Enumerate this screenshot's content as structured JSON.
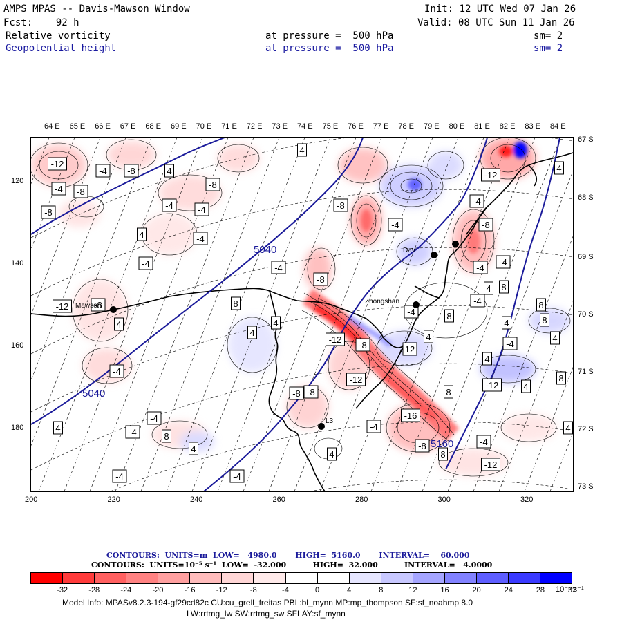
{
  "header": {
    "title": "AMPS MPAS -- Davis-Mawson Window",
    "fcst": "Fcst:    92 h",
    "init": "Init: 12 UTC Wed 07 Jan 26",
    "valid": "Valid: 08 UTC Sun 11 Jan 26",
    "field1": {
      "name": "Relative vorticity",
      "level": "at pressure =  500 hPa",
      "sm": "sm= 2"
    },
    "field2": {
      "name": "Geopotential height",
      "level": "at pressure =  500 hPa",
      "sm": "sm= 2"
    }
  },
  "axes": {
    "top_lon_labels": [
      "64 E",
      "65 E",
      "66 E",
      "67 E",
      "68 E",
      "69 E",
      "70 E",
      "71 E",
      "72 E",
      "73 E",
      "74 E",
      "75 E",
      "76 E",
      "77 E",
      "78 E",
      "79 E",
      "80 E",
      "81 E",
      "82 E",
      "83 E",
      "84 E"
    ],
    "right_lat_labels": [
      "67 S",
      "68 S",
      "69 S",
      "70 S",
      "71 S",
      "72 S",
      "73 S"
    ],
    "left_labels": [
      "120",
      "140",
      "160",
      "180"
    ],
    "bottom_labels": [
      "200",
      "220",
      "240",
      "260",
      "280",
      "300",
      "320"
    ]
  },
  "stations": [
    {
      "name": "Mawson",
      "label": "Mawson"
    },
    {
      "name": "Zhongshan",
      "label": "Zhongshan"
    },
    {
      "name": "Davis",
      "label": "Dav"
    },
    {
      "name": "Station-L3",
      "label": "L3"
    },
    {
      "name": "Station-east",
      "label": ""
    }
  ],
  "height_contour_labels": [
    "5040",
    "5040",
    "5160"
  ],
  "vorticity_box_labels": [
    "-12",
    "-4",
    "-8",
    "4",
    "-8",
    "-4",
    "-8",
    "-4",
    "-4",
    "-8",
    "-4",
    "4",
    "-4",
    "4",
    "-8",
    "-12",
    "4",
    "8",
    "-4",
    "-8",
    "-12",
    "4",
    "-4",
    "-8",
    "-4",
    "4",
    "-8",
    "4",
    "8",
    "-4",
    "-8",
    "-12",
    "-4",
    "-4",
    "-12",
    "-4",
    "-4",
    "8",
    "4",
    "-8",
    "4",
    "-16",
    "-8",
    "4",
    "-12",
    "4",
    "-4",
    "4",
    "-4",
    "-4",
    "4",
    "12",
    "8",
    "4",
    "8",
    "-8",
    "-4",
    "4",
    "-4",
    "8",
    "-4",
    "-4",
    "-12",
    "8",
    "4",
    "-4",
    "8",
    "4",
    "8"
  ],
  "footer": {
    "contours_1": "CONTOURS:  UNITS=m  LOW=   4980.0       HIGH=  5160.0       INTERVAL=    60.000",
    "contours_2": "CONTOURS:  UNITS=10⁻⁵ s⁻¹  LOW=  -32.000          HIGH=  32.000          INTERVAL=   4.0000",
    "model_info": "Model Info: MPASv8.2.3-194-gf29cd82c CU:cu_grell_freitas PBL:bl_mynn MP:mp_thompson SF:sf_noahmp 8.0",
    "model_info_2": "LW:rrtmg_lw SW:rrtmg_sw SFLAY:sf_mynn",
    "colorbar_unit": "10⁻⁵ s⁻¹"
  },
  "colorbar": {
    "labels": [
      "-32",
      "-28",
      "-24",
      "-20",
      "-16",
      "-12",
      "-8",
      "-4",
      "0",
      "4",
      "8",
      "12",
      "16",
      "20",
      "24",
      "28",
      "32"
    ],
    "colors": [
      "#ff0000",
      "#ff3b3b",
      "#ff6060",
      "#ff8282",
      "#ffa0a0",
      "#ffbcbc",
      "#ffd6d6",
      "#ffeaea",
      "#ffffff",
      "#ffffff",
      "#e6e6ff",
      "#c8c8ff",
      "#a5a5ff",
      "#8282ff",
      "#5e5eff",
      "#3a3aff",
      "#0000ff"
    ]
  },
  "colors": {
    "height_contour": "#1a1a9a",
    "coast": "#000000",
    "text_blue": "#1a1aa0"
  }
}
